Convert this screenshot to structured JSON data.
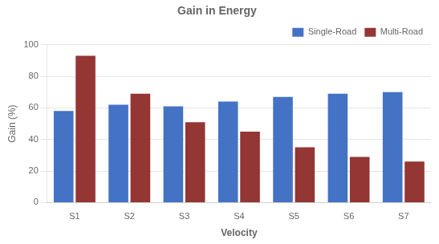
{
  "chart_data": {
    "type": "bar",
    "title": "Gain in Energy",
    "xlabel": "Velocity",
    "ylabel": "Gain (%)",
    "categories": [
      "S1",
      "S2",
      "S3",
      "S4",
      "S5",
      "S6",
      "S7"
    ],
    "series": [
      {
        "name": "Single-Road",
        "color": "#4472C4",
        "values": [
          58,
          62,
          61,
          64,
          67,
          69,
          70
        ]
      },
      {
        "name": "Multi-Road",
        "color": "#943634",
        "values": [
          93,
          69,
          51,
          45,
          35,
          29,
          26
        ]
      }
    ],
    "ylim": [
      0,
      100
    ],
    "yticks": [
      0,
      20,
      40,
      60,
      80,
      100
    ],
    "grid": true,
    "legend": "upper right"
  }
}
